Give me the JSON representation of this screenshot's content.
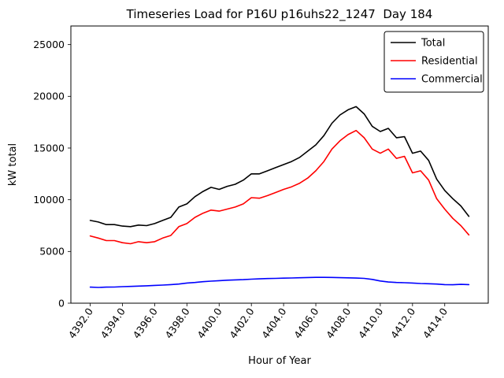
{
  "figure": {
    "title": "Timeseries Load for P16U p16uhs22_1247  Day 184",
    "xlabel": "Hour of Year",
    "ylabel": "kW total"
  },
  "chart_data": {
    "type": "line",
    "title": "Timeseries Load for P16U p16uhs22_1247  Day 184",
    "xlabel": "Hour of Year",
    "ylabel": "kW total",
    "grid": false,
    "legend_position": "upper-right",
    "xlim": [
      4390.8,
      4416.7
    ],
    "ylim": [
      0,
      26800
    ],
    "xticks": {
      "values": [
        4392,
        4394,
        4396,
        4398,
        4400,
        4402,
        4404,
        4406,
        4408,
        4410,
        4412,
        4414
      ],
      "labels": [
        "4392.0",
        "4394.0",
        "4396.0",
        "4398.0",
        "4400.0",
        "4402.0",
        "4404.0",
        "4406.0",
        "4408.0",
        "4410.0",
        "4412.0",
        "4414.0"
      ]
    },
    "yticks": {
      "values": [
        0,
        5000,
        10000,
        15000,
        20000,
        25000
      ],
      "labels": [
        "0",
        "5000",
        "10000",
        "15000",
        "20000",
        "25000"
      ]
    },
    "x": [
      4392.0,
      4392.5,
      4393.0,
      4393.5,
      4394.0,
      4394.5,
      4395.0,
      4395.5,
      4396.0,
      4396.5,
      4397.0,
      4397.5,
      4398.0,
      4398.5,
      4399.0,
      4399.5,
      4400.0,
      4400.5,
      4401.0,
      4401.5,
      4402.0,
      4402.5,
      4403.0,
      4403.5,
      4404.0,
      4404.5,
      4405.0,
      4405.5,
      4406.0,
      4406.5,
      4407.0,
      4407.5,
      4408.0,
      4408.5,
      4409.0,
      4409.5,
      4410.0,
      4410.5,
      4411.0,
      4411.5,
      4412.0,
      4412.5,
      4413.0,
      4413.5,
      4414.0,
      4414.5,
      4415.0,
      4415.5
    ],
    "series": [
      {
        "name": "Total",
        "color": "#000000",
        "values": [
          8000,
          7850,
          7600,
          7600,
          7450,
          7400,
          7550,
          7500,
          7700,
          8000,
          8300,
          9300,
          9600,
          10300,
          10800,
          11200,
          11000,
          11300,
          11500,
          11900,
          12500,
          12500,
          12800,
          13100,
          13400,
          13700,
          14100,
          14700,
          15300,
          16200,
          17400,
          18200,
          18700,
          19000,
          18300,
          17100,
          16600,
          16900,
          16000,
          16100,
          14500,
          14700,
          13800,
          12000,
          10900,
          10100,
          9400,
          8400
        ]
      },
      {
        "name": "Residential",
        "color": "#ff0000",
        "values": [
          6500,
          6300,
          6050,
          6050,
          5850,
          5750,
          5950,
          5850,
          5950,
          6300,
          6550,
          7400,
          7700,
          8300,
          8700,
          9000,
          8900,
          9100,
          9300,
          9600,
          10200,
          10150,
          10400,
          10700,
          11000,
          11250,
          11600,
          12100,
          12800,
          13700,
          14900,
          15700,
          16300,
          16700,
          16000,
          14900,
          14500,
          14900,
          14000,
          14200,
          12600,
          12800,
          11900,
          10100,
          9100,
          8200,
          7500,
          6600
        ]
      },
      {
        "name": "Commercial",
        "color": "#0000ff",
        "values": [
          1550,
          1520,
          1550,
          1560,
          1600,
          1620,
          1650,
          1680,
          1720,
          1750,
          1800,
          1850,
          1950,
          2000,
          2080,
          2130,
          2180,
          2220,
          2250,
          2280,
          2320,
          2350,
          2380,
          2400,
          2420,
          2440,
          2460,
          2480,
          2500,
          2500,
          2490,
          2470,
          2450,
          2430,
          2400,
          2300,
          2150,
          2050,
          2000,
          1980,
          1950,
          1900,
          1880,
          1850,
          1800,
          1780,
          1820,
          1800
        ]
      }
    ]
  }
}
